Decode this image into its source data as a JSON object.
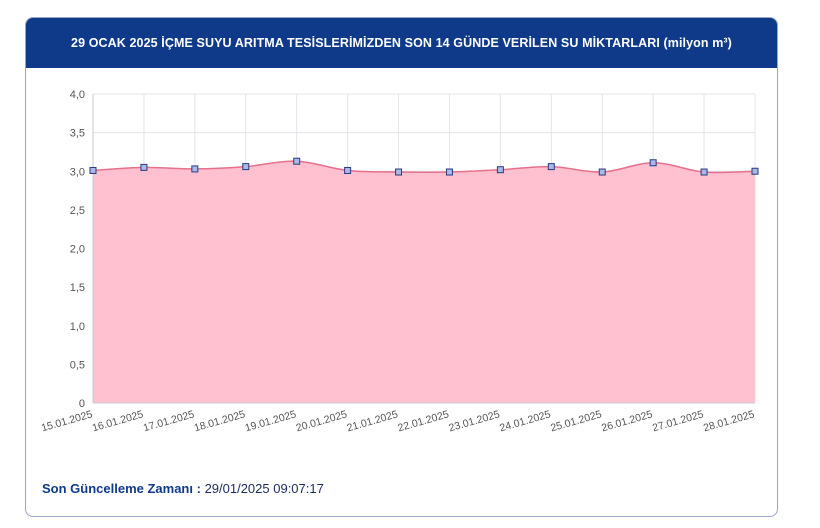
{
  "header": {
    "title": "29 OCAK 2025 İÇME SUYU ARITMA TESİSLERİMİZDEN SON 14 GÜNDE VERİLEN SU MİKTARLARI (milyon m³)"
  },
  "footer": {
    "label": "Son Güncelleme Zamanı :",
    "value": "29/01/2025 09:07:17"
  },
  "colors": {
    "header_bg": "#0f3a8a",
    "area_fill": "#ffc1cf",
    "line": "#e8708c",
    "marker_fill": "#a9b8e8",
    "marker_stroke": "#2b3a7a"
  },
  "chart_data": {
    "type": "area",
    "title": "29 OCAK 2025 İÇME SUYU ARITMA TESİSLERİMİZDEN SON 14 GÜNDE VERİLEN SU MİKTARLARI (milyon m³)",
    "categories": [
      "15.01.2025",
      "16.01.2025",
      "17.01.2025",
      "18.01.2025",
      "19.01.2025",
      "20.01.2025",
      "21.01.2025",
      "22.01.2025",
      "23.01.2025",
      "24.01.2025",
      "25.01.2025",
      "26.01.2025",
      "27.01.2025",
      "28.01.2025"
    ],
    "values": [
      3.01,
      3.05,
      3.03,
      3.06,
      3.13,
      3.01,
      2.99,
      2.99,
      3.02,
      3.06,
      2.99,
      3.11,
      2.99,
      3.0
    ],
    "y_ticks": [
      "0",
      "0,5",
      "1,0",
      "1,5",
      "2,0",
      "2,5",
      "3,0",
      "3,5",
      "4,0"
    ],
    "ylim": [
      0,
      4.0
    ],
    "grid": true,
    "legend": "none"
  }
}
